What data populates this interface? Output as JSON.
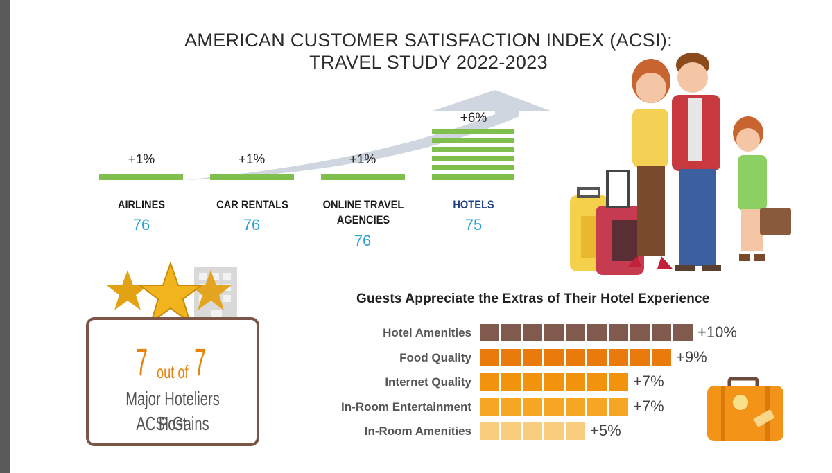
{
  "title": {
    "line1": "AMERICAN CUSTOMER SATISFACTION INDEX (ACSI):",
    "line2": "TRAVEL STUDY 2022-2023"
  },
  "categories": [
    {
      "name": "AIRLINES",
      "change": "+1%",
      "score": "76"
    },
    {
      "name": "CAR RENTALS",
      "change": "+1%",
      "score": "76"
    },
    {
      "name_line1": "ONLINE TRAVEL",
      "name_line2": "AGENCIES",
      "change": "+1%",
      "score": "76"
    },
    {
      "name": "HOTELS",
      "change": "+6%",
      "score": "75"
    }
  ],
  "hoteliers": {
    "num1": "7",
    "mid": "out of",
    "num2": "7",
    "caption_line1": "Major Hoteliers Post",
    "caption_line2": "ACSI Gains"
  },
  "chart_data": {
    "type": "bar",
    "title": "Guests Appreciate the Extras of Their Hotel Experience",
    "categories": [
      "Hotel Amenities",
      "Food Quality",
      "Internet Quality",
      "In-Room Entertainment",
      "In-Room Amenities"
    ],
    "values": [
      10,
      9,
      7,
      7,
      5
    ],
    "value_labels": [
      "+10%",
      "+9%",
      "+7%",
      "+7%",
      "+5%"
    ],
    "unit": "% increase",
    "colors": [
      "#7f5a4d",
      "#e87b0c",
      "#f2930e",
      "#f6a623",
      "#f9cc7e"
    ]
  },
  "colors": {
    "green": "#7fbf4d",
    "blue_score": "#2a9fd6",
    "orange": "#e8830c",
    "brown": "#7a5548"
  }
}
